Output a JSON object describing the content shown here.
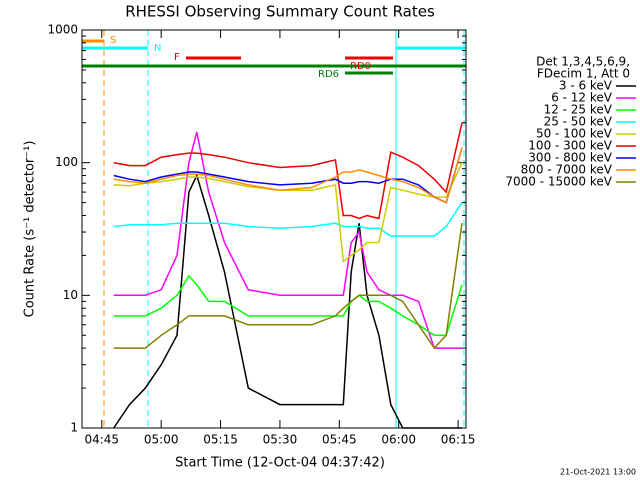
{
  "chart_data": {
    "type": "line",
    "title": "RHESSI Observing Summary Count Rates",
    "xlabel": "Start Time (12-Oct-04 04:37:42)",
    "ylabel": "Count Rate (s⁻¹ detector⁻¹)",
    "footer": "21-Oct-2021 13:00",
    "legend_title": [
      "Det 1,3,4,5,6,9,",
      "FDecim 1, Att 0"
    ],
    "annotations": [
      "S",
      "N",
      "F",
      "RD0",
      "RD6"
    ],
    "ylog": true,
    "ylim": [
      1,
      1000
    ],
    "yticks": [
      1,
      10,
      100,
      1000
    ],
    "xlim": [
      "04:40",
      "06:17"
    ],
    "xticks": [
      "04:45",
      "05:00",
      "05:15",
      "05:30",
      "05:45",
      "06:00",
      "06:15"
    ],
    "x": [
      "04:48",
      "04:52",
      "04:56",
      "05:00",
      "05:04",
      "05:07",
      "05:09",
      "05:12",
      "05:16",
      "05:22",
      "05:30",
      "05:38",
      "05:44",
      "05:46",
      "05:48",
      "05:50",
      "05:52",
      "05:55",
      "05:58",
      "06:01",
      "06:05",
      "06:09",
      "06:12",
      "06:16"
    ],
    "series": [
      {
        "name": "3 - 6 keV",
        "color": "#000000",
        "values": [
          1,
          1.5,
          2,
          3,
          5,
          60,
          80,
          40,
          15,
          2,
          1.5,
          1.5,
          1.5,
          1.5,
          15,
          35,
          10,
          5,
          1.5,
          1,
          1,
          1,
          1,
          1
        ]
      },
      {
        "name": "6 - 12 keV",
        "color": "#ff00ff",
        "values": [
          10,
          10,
          10,
          11,
          20,
          100,
          170,
          60,
          25,
          11,
          10,
          10,
          10,
          10,
          25,
          30,
          15,
          11,
          10,
          10,
          9,
          4,
          4,
          4
        ]
      },
      {
        "name": "12 - 25 keV",
        "color": "#00ff00",
        "values": [
          7,
          7,
          7,
          8,
          10,
          14,
          12,
          9,
          9,
          7,
          7,
          7,
          7,
          7,
          9,
          10,
          9,
          9,
          8,
          7,
          6,
          5,
          5,
          12
        ]
      },
      {
        "name": "25 - 50 keV",
        "color": "#00ffff",
        "values": [
          33,
          34,
          34,
          34,
          35,
          35,
          35,
          35,
          35,
          33,
          32,
          33,
          35,
          33,
          33,
          33,
          32,
          32,
          28,
          28,
          28,
          28,
          33,
          50
        ]
      },
      {
        "name": "50 - 100 keV",
        "color": "#cccc00",
        "values": [
          68,
          67,
          70,
          72,
          75,
          78,
          78,
          76,
          72,
          66,
          62,
          62,
          68,
          18,
          20,
          22,
          25,
          25,
          65,
          62,
          58,
          55,
          55,
          100
        ]
      },
      {
        "name": "100 - 300 keV",
        "color": "#ee0000",
        "values": [
          100,
          95,
          95,
          110,
          115,
          118,
          118,
          115,
          110,
          100,
          92,
          95,
          105,
          40,
          40,
          38,
          40,
          38,
          120,
          110,
          95,
          75,
          60,
          200
        ]
      },
      {
        "name": "300 - 800 keV",
        "color": "#0000ee",
        "values": [
          80,
          75,
          72,
          78,
          82,
          85,
          85,
          82,
          78,
          72,
          68,
          70,
          75,
          70,
          70,
          72,
          72,
          70,
          75,
          75,
          68,
          55,
          50,
          130
        ]
      },
      {
        "name": "800 - 7000 keV",
        "color": "#ff8c00",
        "values": [
          75,
          72,
          70,
          75,
          80,
          82,
          82,
          80,
          75,
          68,
          62,
          65,
          78,
          85,
          85,
          88,
          85,
          80,
          75,
          72,
          65,
          55,
          50,
          130
        ]
      },
      {
        "name": "7000 - 15000 keV",
        "color": "#808000",
        "values": [
          4,
          4,
          4,
          5,
          6,
          7,
          7,
          7,
          7,
          6,
          6,
          6,
          7,
          8,
          9,
          10,
          10,
          10,
          10,
          9,
          6,
          4,
          5,
          35
        ]
      }
    ]
  }
}
